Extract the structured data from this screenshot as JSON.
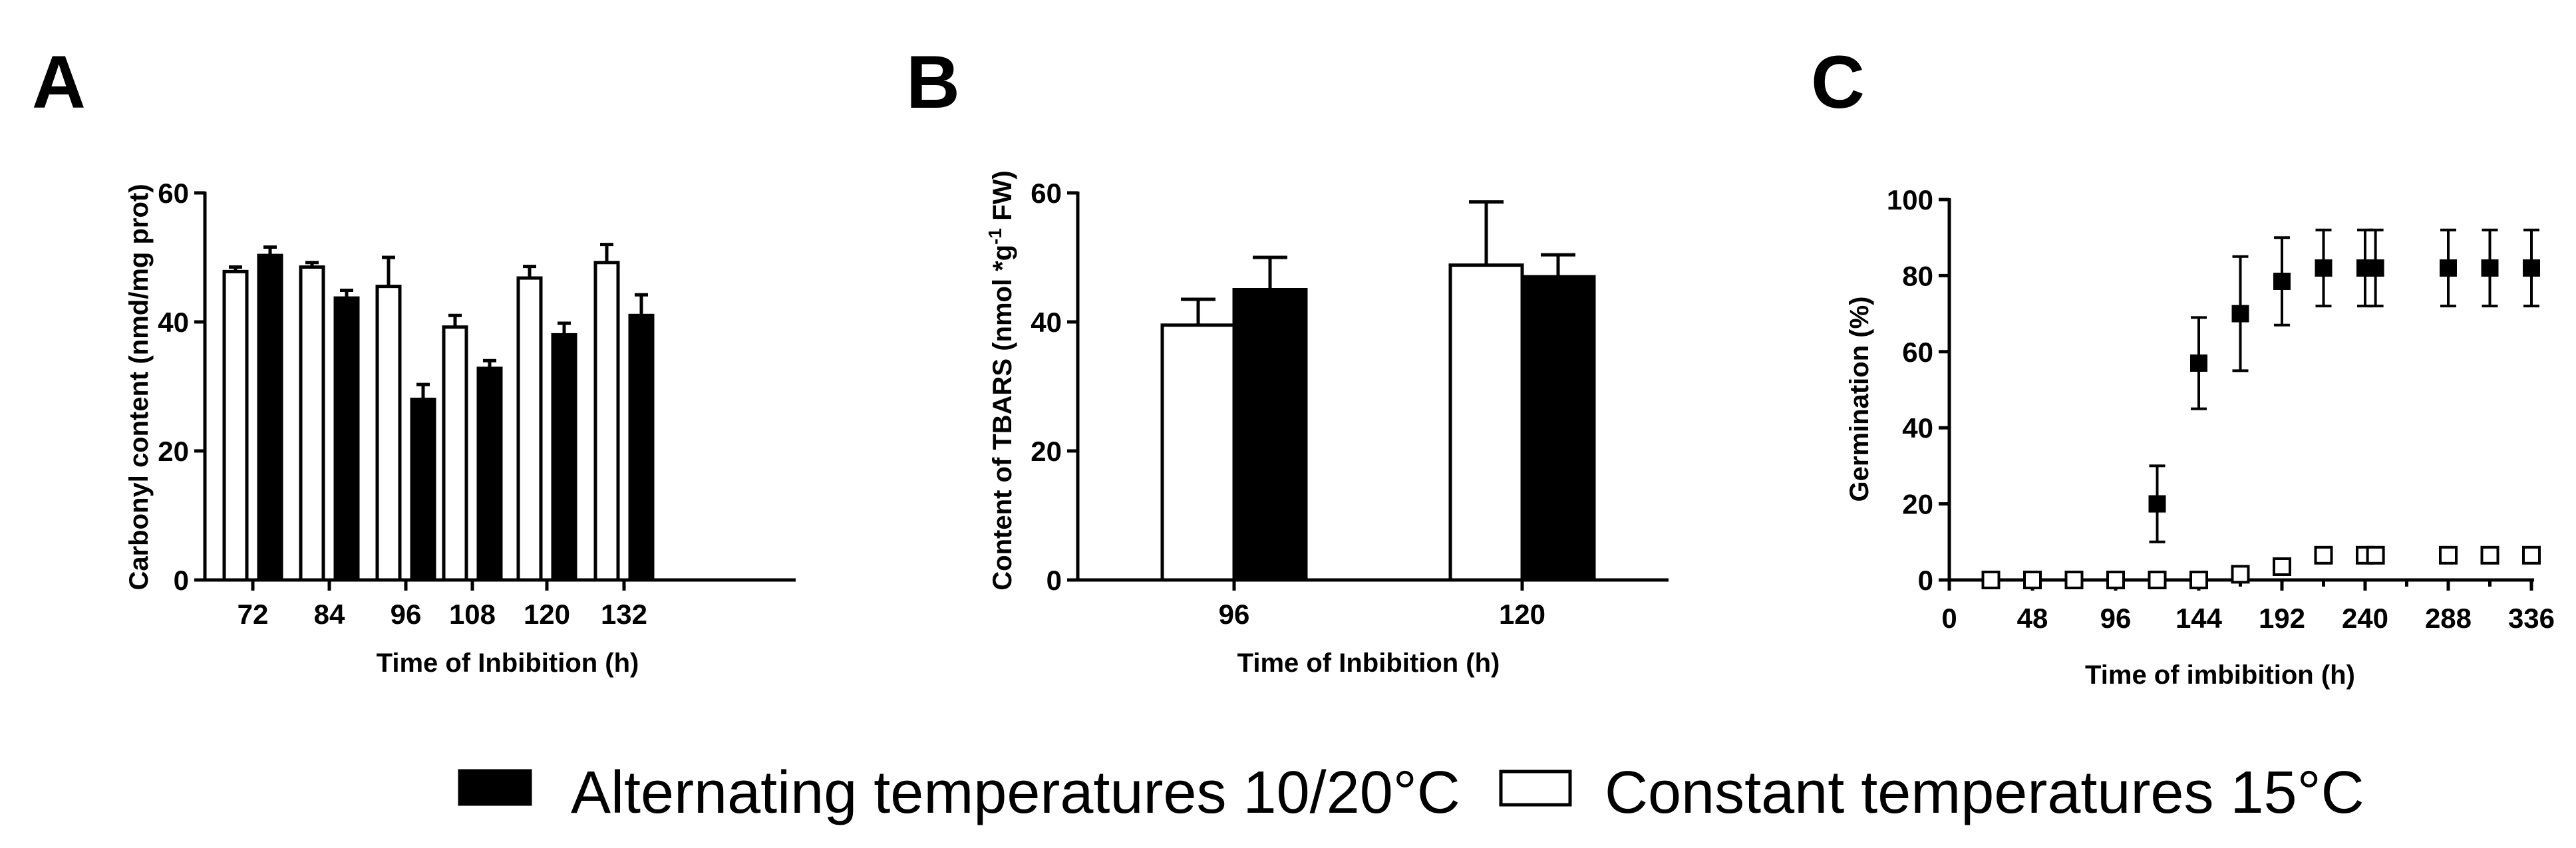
{
  "legend": {
    "alternating": "Alternating temperatures 10/20°C",
    "constant": "Constant temperatures 15°C",
    "alternating_color": "#000000",
    "constant_color": "#ffffff"
  },
  "chart_data": [
    {
      "panel": "A",
      "type": "bar",
      "title": "",
      "xlabel": "Time of Inbibition (h)",
      "ylabel": "Carbonyl content  (nmd/mg prot)",
      "ylim": [
        0,
        60
      ],
      "yticks": [
        "0",
        "20",
        "40",
        "60"
      ],
      "categories": [
        "72",
        "84",
        "96",
        "108",
        "120",
        "132"
      ],
      "series": [
        {
          "name": "Constant temperatures 15°C",
          "fill": "#ffffff",
          "values": [
            47.8,
            48.5,
            45.5,
            39.2,
            46.8,
            49.2
          ],
          "errors": [
            0.7,
            0.7,
            4.5,
            1.8,
            1.8,
            2.8
          ]
        },
        {
          "name": "Alternating temperatures 10/20°C",
          "fill": "#000000",
          "values": [
            50.3,
            43.7,
            28.0,
            32.8,
            38.0,
            41.0
          ],
          "errors": [
            1.3,
            1.2,
            2.3,
            1.2,
            1.8,
            3.2
          ]
        }
      ]
    },
    {
      "panel": "B",
      "type": "bar",
      "title": "",
      "xlabel": "Time of Inbibition (h)",
      "ylabel_parts": [
        "Content of TBARS (nmol *g",
        "-1",
        " FW)"
      ],
      "ylim": [
        0,
        60
      ],
      "yticks": [
        "0",
        "20",
        "40",
        "60"
      ],
      "categories": [
        "96",
        "120"
      ],
      "series": [
        {
          "name": "Constant temperatures 15°C",
          "fill": "#ffffff",
          "values": [
            39.5,
            48.8
          ],
          "errors": [
            4.0,
            9.8
          ]
        },
        {
          "name": "Alternating temperatures 10/20°C",
          "fill": "#000000",
          "values": [
            45.0,
            47.0
          ],
          "errors": [
            5.0,
            3.4
          ]
        }
      ]
    },
    {
      "panel": "C",
      "type": "scatter",
      "title": "",
      "xlabel": "Time of imbibition (h)",
      "ylabel": "Germination (%)",
      "xlim": [
        0,
        336
      ],
      "ylim": [
        0,
        100
      ],
      "xticks": [
        "0",
        "48",
        "96",
        "144",
        "192",
        "240",
        "288",
        "336"
      ],
      "yticks": [
        "0",
        "20",
        "40",
        "60",
        "80",
        "100"
      ],
      "series": [
        {
          "name": "Alternating temperatures 10/20°C",
          "marker": "filled-square",
          "x": [
            24,
            48,
            72,
            96,
            120,
            144,
            168,
            192,
            216,
            240,
            246,
            288,
            312,
            336
          ],
          "y": [
            0,
            0,
            0,
            0,
            20,
            57,
            70,
            78.5,
            82,
            82,
            82,
            82,
            82,
            82
          ],
          "errors": [
            0,
            0,
            0,
            0,
            10,
            12,
            15,
            11.5,
            10,
            10,
            10,
            10,
            10,
            10
          ]
        },
        {
          "name": "Constant temperatures 15°C",
          "marker": "open-square",
          "x": [
            24,
            48,
            72,
            96,
            120,
            144,
            168,
            192,
            216,
            240,
            246,
            288,
            312,
            336
          ],
          "y": [
            0,
            0,
            0,
            0,
            0,
            0,
            1.5,
            3.5,
            6.5,
            6.5,
            6.5,
            6.5,
            6.5,
            6.5
          ],
          "errors": [
            0,
            0,
            0,
            0,
            0,
            0,
            0,
            0,
            0,
            0,
            0,
            0,
            0,
            0
          ]
        }
      ]
    }
  ]
}
